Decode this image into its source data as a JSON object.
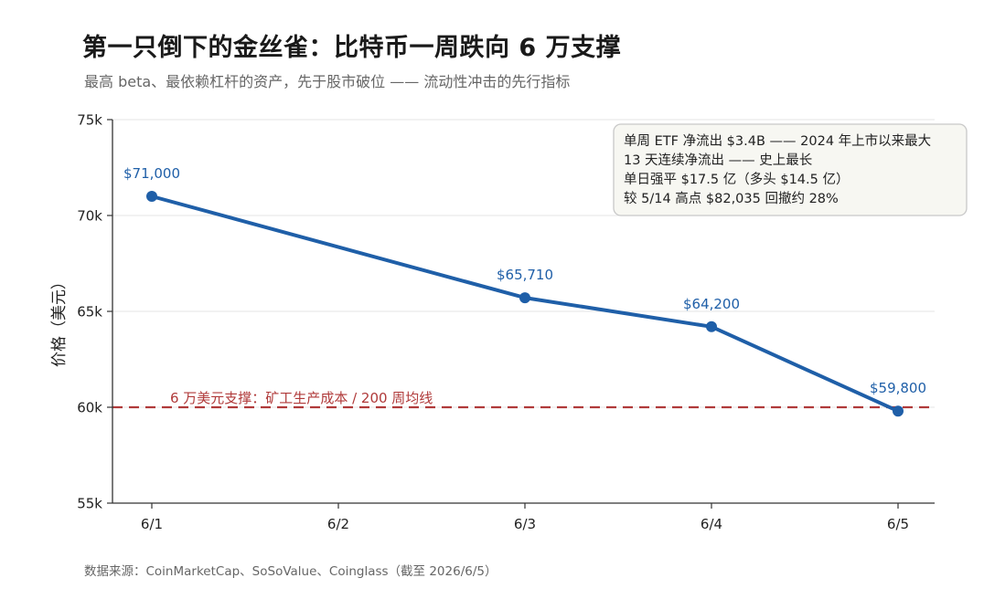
{
  "header": {
    "title": "第一只倒下的金丝雀：比特币一周跌向 6 万支撑",
    "subtitle": "最高 beta、最依赖杠杆的资产，先于股市破位 —— 流动性冲击的先行指标"
  },
  "footer": {
    "source": "数据来源：CoinMarketCap、SoSoValue、Coinglass（截至 2026/6/5）"
  },
  "chart_data": {
    "type": "line",
    "title": "第一只倒下的金丝雀：比特币一周跌向 6 万支撑",
    "subtitle": "最高 beta、最依赖杠杆的资产，先于股市破位 —— 流动性冲击的先行指标",
    "xlabel": "",
    "ylabel": "价格（美元）",
    "categories": [
      "6/1",
      "6/2",
      "6/3",
      "6/4",
      "6/5"
    ],
    "series": [
      {
        "x": [
          "6/1",
          "6/3",
          "6/4",
          "6/5"
        ],
        "values": [
          71000,
          65710,
          64200,
          59800
        ],
        "labels": [
          "$71,000",
          "$65,710",
          "$64,200",
          "$59,800"
        ],
        "color": "#1f5fa8"
      }
    ],
    "ylim": [
      55000,
      75000
    ],
    "yticks": [
      55000,
      60000,
      65000,
      70000,
      75000
    ],
    "ytick_labels": [
      "55k",
      "60k",
      "65k",
      "70k",
      "75k"
    ],
    "grid": "horizontal",
    "reference_line": {
      "value": 60000,
      "label": "6 万美元支撑：矿工生产成本 / 200 周均线",
      "color": "#b03a3a"
    },
    "annotation": {
      "placement": "top-right",
      "lines": [
        "单周 ETF 净流出 $3.4B —— 2024 年上市以来最大",
        "13 天连续净流出 —— 史上最长",
        "单日强平 $17.5 亿（多头 $14.5 亿）",
        "较 5/14 高点 $82,035 回撤约 28%"
      ]
    }
  }
}
